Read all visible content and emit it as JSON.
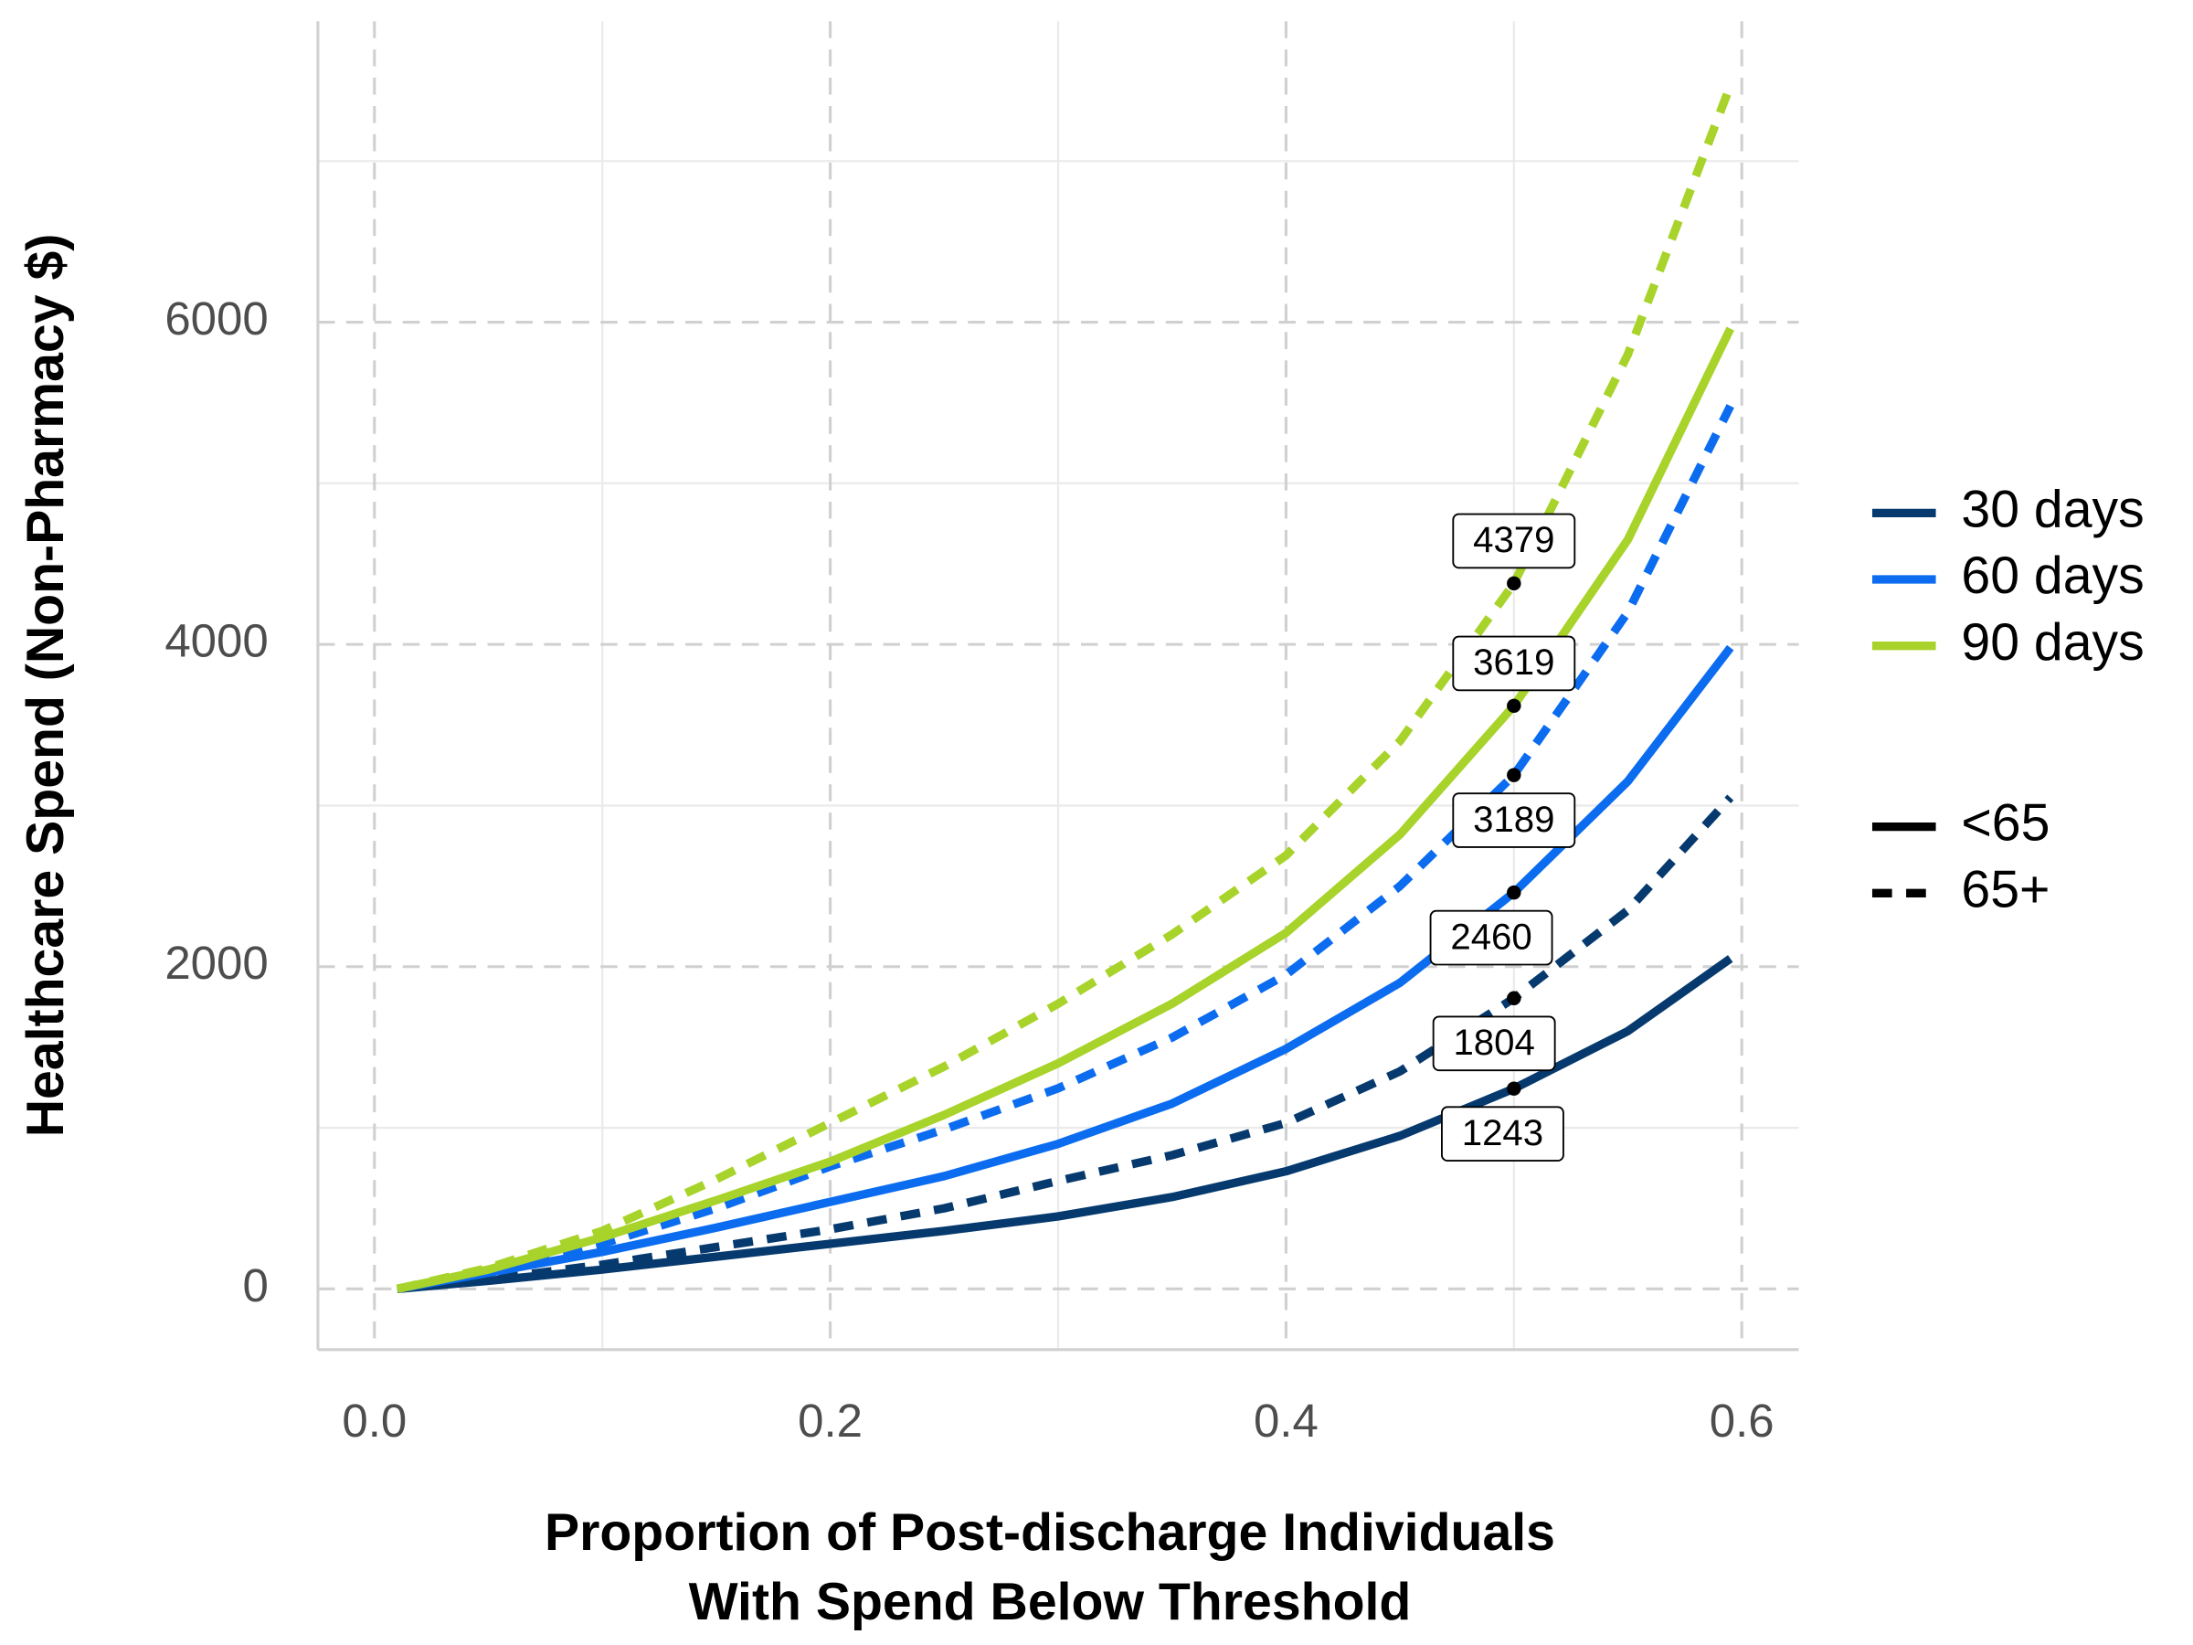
{
  "chart_data": {
    "type": "line",
    "xlabel": [
      "Proportion of Post-discharge Individuals",
      "With Spend Below Threshold"
    ],
    "ylabel": "Healthcare Spend (Non-Pharmacy $)",
    "x": [
      0.01,
      0.05,
      0.1,
      0.15,
      0.2,
      0.25,
      0.3,
      0.35,
      0.4,
      0.45,
      0.5,
      0.55,
      0.595
    ],
    "series": [
      {
        "period": "30 days",
        "age_group": "<65",
        "color": "#063a6e",
        "dashed": false,
        "values": [
          0,
          50,
          120,
          200,
          280,
          360,
          450,
          570,
          730,
          950,
          1243,
          1600,
          2050
        ]
      },
      {
        "period": "30 days",
        "age_group": "65+",
        "color": "#063a6e",
        "dashed": true,
        "values": [
          0,
          60,
          150,
          260,
          370,
          500,
          670,
          830,
          1030,
          1350,
          1804,
          2350,
          3050
        ]
      },
      {
        "period": "60 days",
        "age_group": "<65",
        "color": "#0b6cf0",
        "dashed": false,
        "values": [
          0,
          100,
          230,
          380,
          540,
          700,
          900,
          1150,
          1490,
          1900,
          2460,
          3150,
          3980
        ]
      },
      {
        "period": "60 days",
        "age_group": "65+",
        "color": "#0b6cf0",
        "dashed": true,
        "values": [
          0,
          110,
          280,
          500,
          760,
          990,
          1245,
          1560,
          1950,
          2500,
          3189,
          4200,
          5480
        ]
      },
      {
        "period": "90 days",
        "age_group": "<65",
        "color": "#a8d32a",
        "dashed": false,
        "values": [
          0,
          120,
          320,
          550,
          790,
          1080,
          1400,
          1770,
          2210,
          2820,
          3619,
          4650,
          5960
        ]
      },
      {
        "period": "90 days",
        "age_group": "65+",
        "color": "#a8d32a",
        "dashed": true,
        "values": [
          0,
          130,
          360,
          680,
          1030,
          1380,
          1770,
          2200,
          2690,
          3400,
          4379,
          5800,
          7470
        ]
      }
    ],
    "annotations": [
      {
        "x": 0.5,
        "value": 4379
      },
      {
        "x": 0.5,
        "value": 3619
      },
      {
        "x": 0.5,
        "value": 3189
      },
      {
        "x": 0.5,
        "value": 2460
      },
      {
        "x": 0.5,
        "value": 1804
      },
      {
        "x": 0.5,
        "value": 1243
      }
    ],
    "xlim": [
      -0.0248,
      0.625
    ],
    "xticks": [
      {
        "value": 0,
        "label": "0.0"
      },
      0.2,
      0.4,
      0.6
    ],
    "x_minor_ticks": [
      0.1,
      0.3,
      0.5
    ],
    "ylim": [
      -377,
      7868
    ],
    "yticks": [
      0,
      2000,
      4000,
      6000
    ],
    "y_minor_ticks": [
      1000,
      3000,
      5000,
      7000
    ],
    "grid": true
  }
}
